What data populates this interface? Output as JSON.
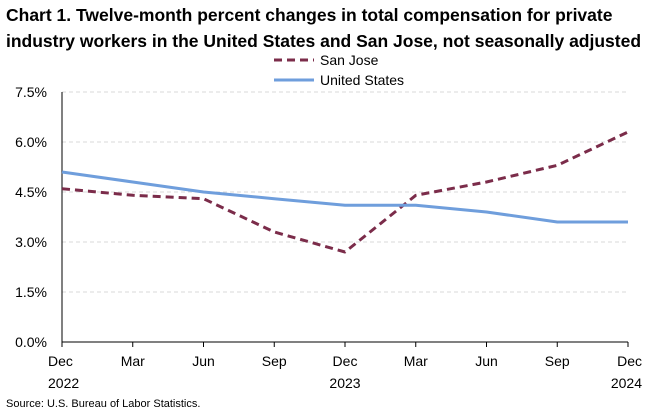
{
  "chart_data": {
    "type": "line",
    "title_line1": "Chart 1. Twelve-month percent changes in total compensation for private",
    "title_line2": "industry workers in the United States and San Jose, not seasonally adjusted",
    "x_ticks": [
      {
        "month": "Dec",
        "year": "2022"
      },
      {
        "month": "Mar",
        "year": ""
      },
      {
        "month": "Jun",
        "year": ""
      },
      {
        "month": "Sep",
        "year": ""
      },
      {
        "month": "Dec",
        "year": "2023"
      },
      {
        "month": "Mar",
        "year": ""
      },
      {
        "month": "Jun",
        "year": ""
      },
      {
        "month": "Sep",
        "year": ""
      },
      {
        "month": "Dec",
        "year": "2024"
      }
    ],
    "y_ticks": [
      "0.0%",
      "1.5%",
      "3.0%",
      "4.5%",
      "6.0%",
      "7.5%"
    ],
    "y_tick_values": [
      0,
      1.5,
      3.0,
      4.5,
      6.0,
      7.5
    ],
    "ylim": [
      0,
      7.5
    ],
    "grid": true,
    "legend_position": "top-center",
    "series": [
      {
        "name": "San Jose",
        "color": "#7b2c4a",
        "style": "dashed",
        "values": [
          4.6,
          4.4,
          4.3,
          3.3,
          2.7,
          4.4,
          4.8,
          5.3,
          6.3
        ]
      },
      {
        "name": "United States",
        "color": "#6f9edc",
        "style": "solid",
        "values": [
          5.1,
          4.8,
          4.5,
          4.3,
          4.1,
          4.1,
          3.9,
          3.6,
          3.6
        ]
      }
    ],
    "source": "Source: U.S. Bureau of Labor Statistics."
  }
}
